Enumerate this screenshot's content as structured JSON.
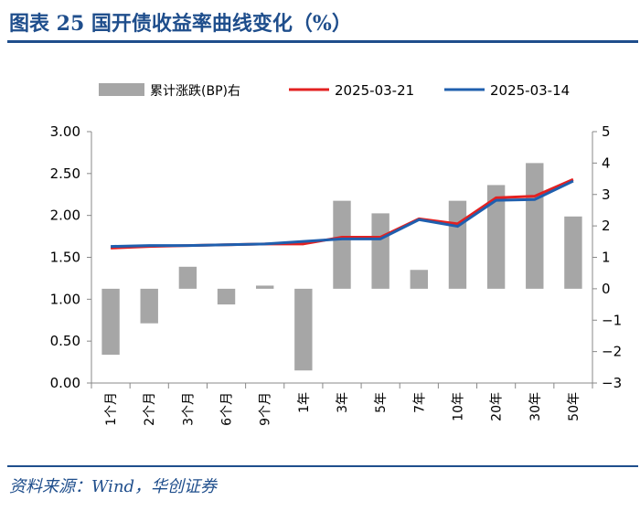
{
  "header": {
    "title": "图表 25   国开债收益率曲线变化（%）"
  },
  "footer": {
    "source": "资料来源：Wind，华创证券"
  },
  "chart_data": {
    "type": "bar+line",
    "categories": [
      "1个月",
      "2个月",
      "3个月",
      "6个月",
      "9个月",
      "1年",
      "3年",
      "5年",
      "7年",
      "10年",
      "20年",
      "30年",
      "50年"
    ],
    "left_axis": {
      "ylim": [
        0,
        3
      ],
      "ticks": [
        "0.00",
        "0.50",
        "1.00",
        "1.50",
        "2.00",
        "2.50",
        "3.00"
      ]
    },
    "right_axis": {
      "ylim": [
        -3,
        5
      ],
      "ticks": [
        "-3",
        "-2",
        "-1",
        "0",
        "1",
        "2",
        "3",
        "4",
        "5"
      ]
    },
    "legend": {
      "position": "top",
      "entries": [
        "累计涨跌(BP)右",
        "2025-03-21",
        "2025-03-14"
      ]
    },
    "bars": {
      "name": "累计涨跌(BP)右",
      "axis": "right",
      "color": "#a6a6a6",
      "values": [
        -2.1,
        -1.1,
        0.7,
        -0.5,
        0.1,
        -2.6,
        2.8,
        2.4,
        0.6,
        2.8,
        3.3,
        4.0,
        2.3
      ]
    },
    "series": [
      {
        "name": "2025-03-21",
        "axis": "left",
        "color": "#e32121",
        "values": [
          1.61,
          1.63,
          1.64,
          1.65,
          1.66,
          1.66,
          1.74,
          1.74,
          1.96,
          1.9,
          2.21,
          2.23,
          2.43
        ]
      },
      {
        "name": "2025-03-14",
        "axis": "left",
        "color": "#1f5fae",
        "values": [
          1.63,
          1.64,
          1.64,
          1.65,
          1.66,
          1.69,
          1.72,
          1.72,
          1.95,
          1.87,
          2.18,
          2.19,
          2.41
        ]
      }
    ]
  }
}
